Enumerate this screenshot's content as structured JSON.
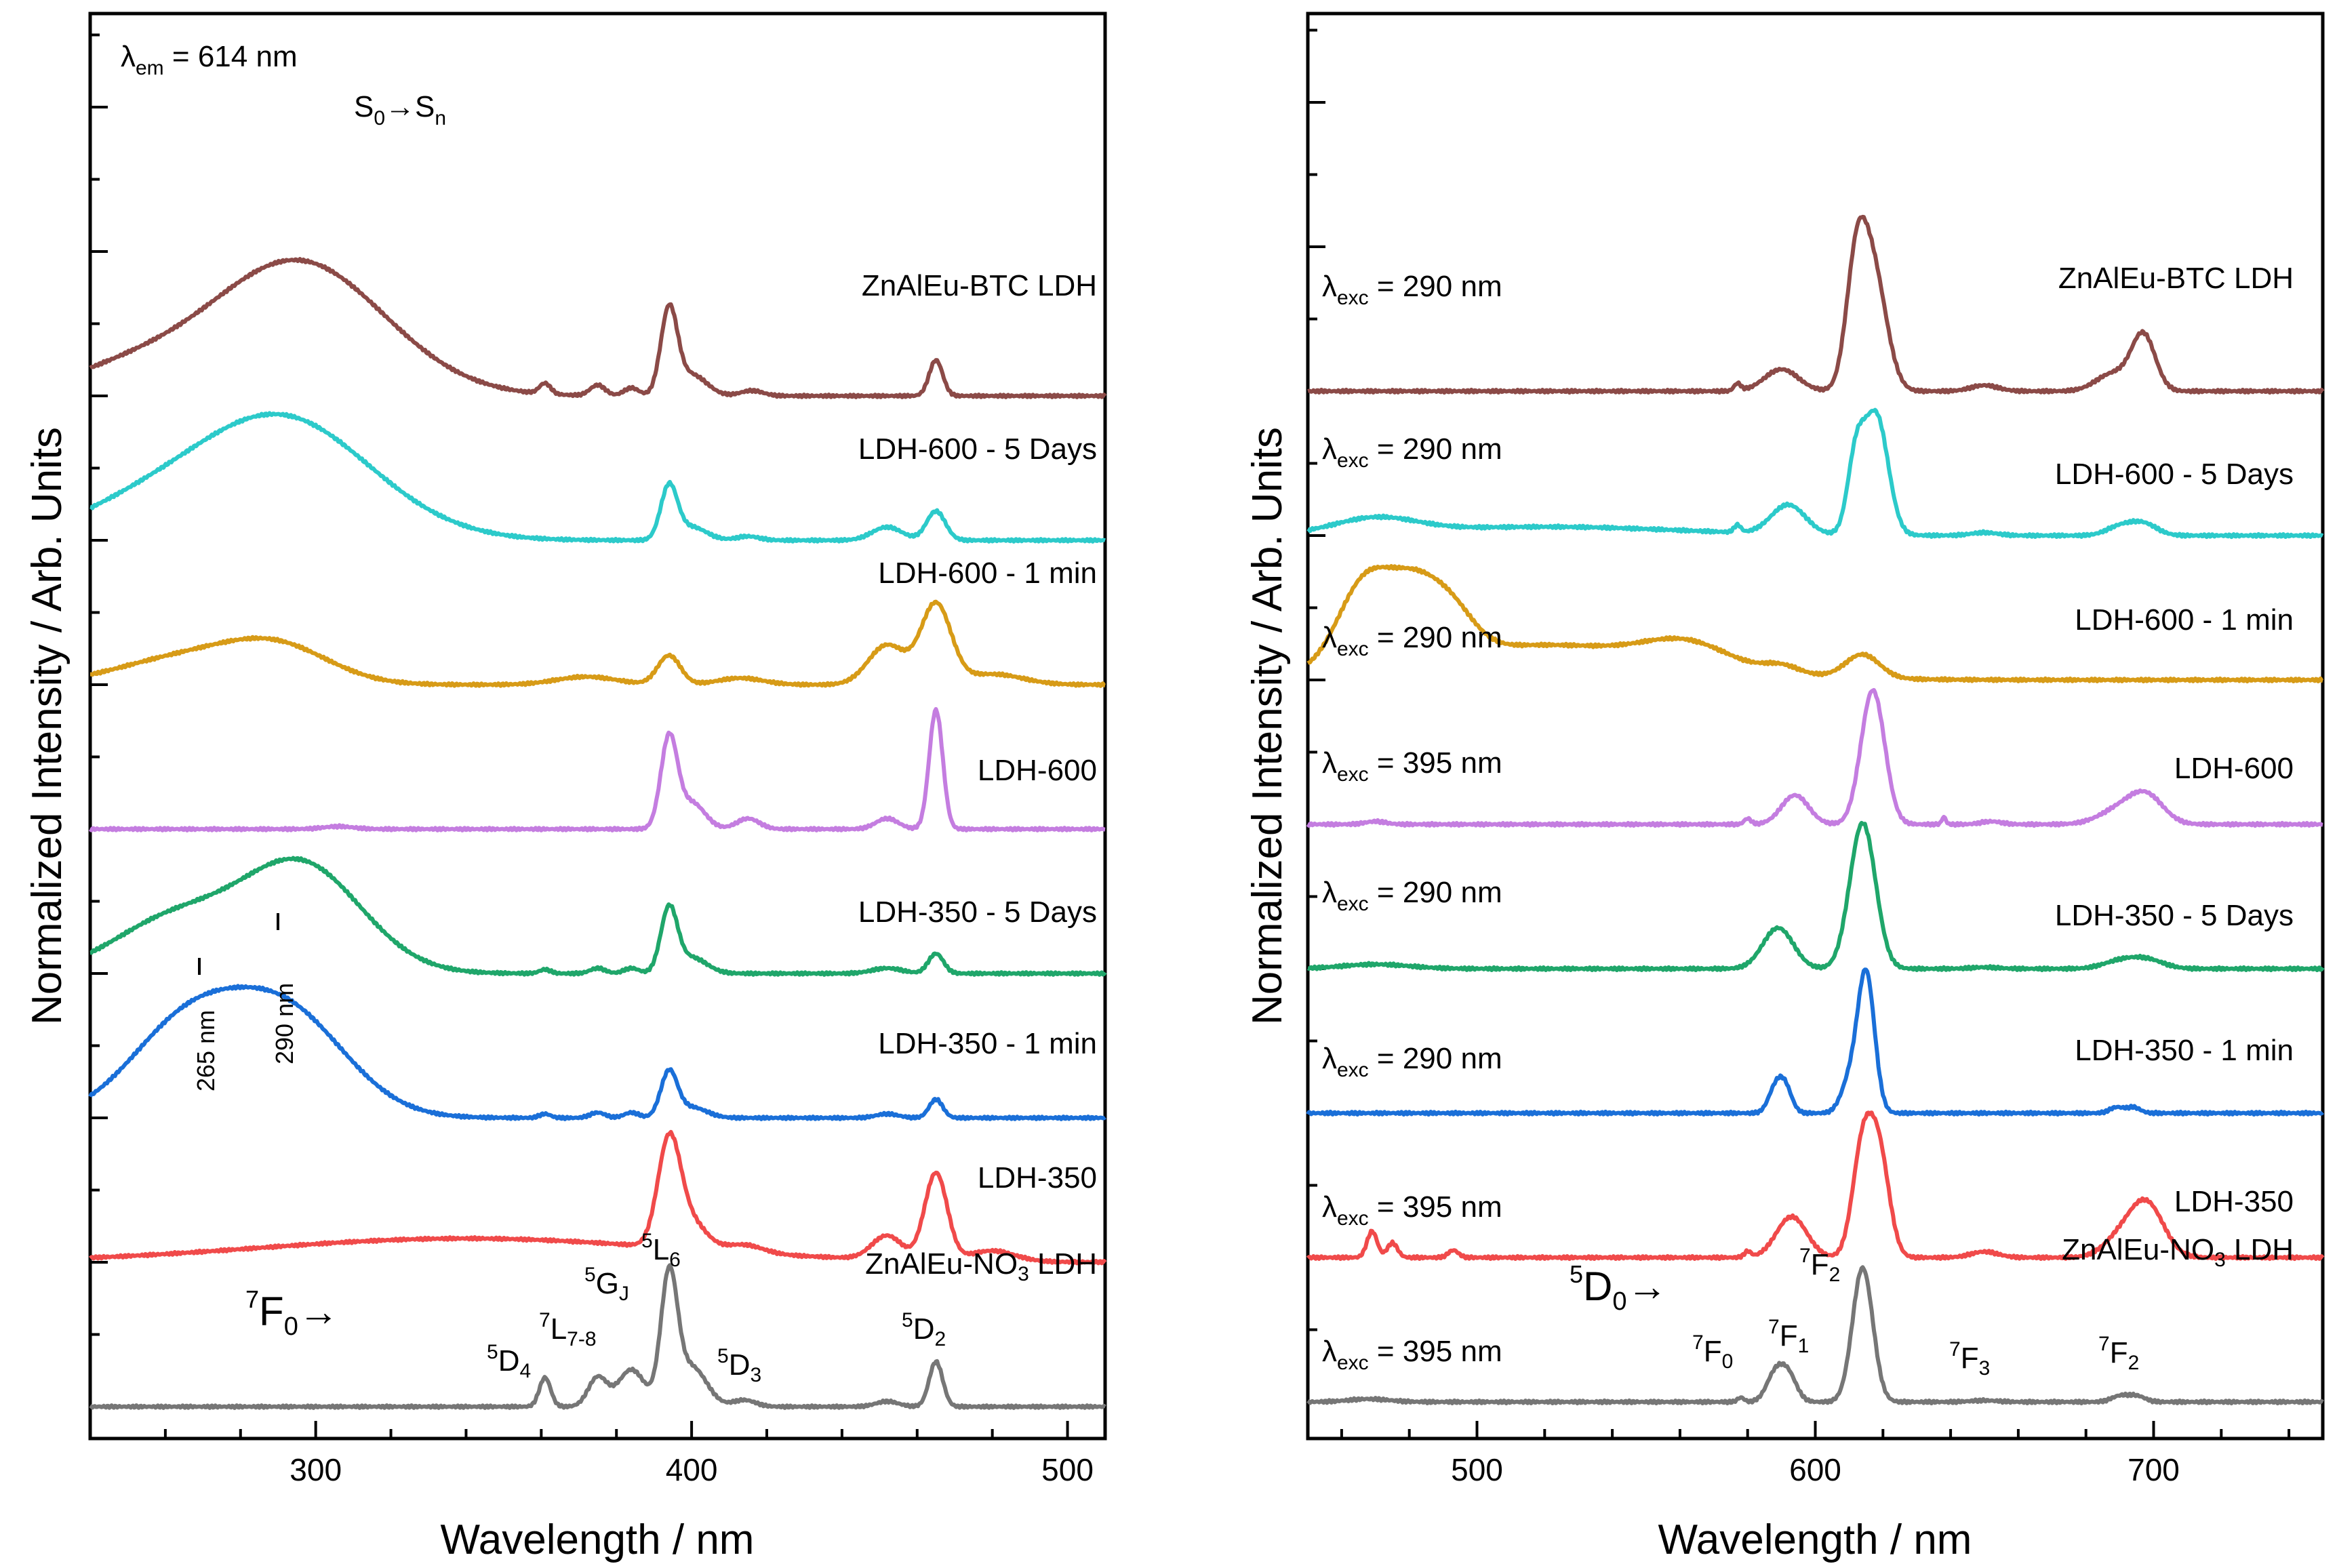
{
  "chart_data": [
    {
      "type": "line",
      "panel": "excitation",
      "xlabel": "Wavelength / nm",
      "ylabel": "Normalized Intensity / Arb. Units",
      "xlim": [
        240,
        510
      ],
      "xticks": [
        300,
        400,
        500
      ],
      "xtick_labels": [
        "300",
        "400",
        "500"
      ],
      "ylim": [
        0,
        8.5
      ],
      "annotations": {
        "lambda_em": "λ",
        "lambda_em_sub": "em",
        "lambda_em_value": " = 614 nm",
        "s0": "S",
        "s0_sub": "0",
        "arrow": "→",
        "sn": "S",
        "sn_sub": "n",
        "peak1": "265 nm",
        "peak2": "290 nm",
        "f0_sup": "7",
        "f0_main": "F",
        "f0_sub": "0",
        "f0_arrow": "→",
        "d4_sup": "5",
        "d4_main": "D",
        "d4_sub": "4",
        "l78_sup": "7",
        "l78_main": "L",
        "l78_sub": "7-8",
        "gj_sup": "5",
        "gj_main": "G",
        "gj_sub": "J",
        "l6_sup": "5",
        "l6_main": "L",
        "l6_sub": "6",
        "d3_sup": "5",
        "d3_main": "D",
        "d3_sub": "3",
        "d2_sup": "5",
        "d2_main": "D",
        "d2_sub": "2"
      },
      "series": [
        {
          "name": "ZnAlEu-BTC LDH",
          "color": "#8b4a47",
          "offset": 7.0,
          "peaks": [
            [
              295,
              1.02,
              23
            ],
            [
              250,
              0.18,
              18
            ],
            [
              361,
              0.08,
              1.5
            ],
            [
              375,
              0.08,
              2
            ],
            [
              384,
              0.06,
              2
            ],
            [
              394,
              0.64,
              2.2
            ],
            [
              400,
              0.16,
              4
            ],
            [
              416,
              0.04,
              3
            ],
            [
              465,
              0.27,
              1.8
            ]
          ]
        },
        {
          "name": "LDH-600 - 5 Days",
          "color": "#2ccaca",
          "offset": 6.0,
          "peaks": [
            [
              290,
              0.94,
              24
            ],
            [
              250,
              0.16,
              18
            ],
            [
              394,
              0.4,
              2.2
            ],
            [
              400,
              0.1,
              4
            ],
            [
              415,
              0.03,
              3
            ],
            [
              452,
              0.1,
              4
            ],
            [
              465,
              0.22,
              2.5
            ]
          ]
        },
        {
          "name": "LDH-600 - 1 min",
          "color": "#d79b17",
          "offset": 5.0,
          "peaks": [
            [
              265,
              0.2,
              18
            ],
            [
              290,
              0.26,
              14
            ],
            [
              372,
              0.06,
              8
            ],
            [
              394,
              0.22,
              3
            ],
            [
              413,
              0.05,
              6
            ],
            [
              452,
              0.3,
              5
            ],
            [
              465,
              0.6,
              4
            ],
            [
              480,
              0.08,
              8
            ]
          ]
        },
        {
          "name": "LDH-600",
          "color": "#c47de0",
          "offset": 4.0,
          "peaks": [
            [
              306,
              0.02,
              4
            ],
            [
              394,
              0.68,
              2.2
            ],
            [
              400,
              0.2,
              3.5
            ],
            [
              415,
              0.08,
              3
            ],
            [
              452,
              0.08,
              3
            ],
            [
              465,
              0.9,
              1.8
            ]
          ]
        },
        {
          "name": "LDH-350 - 5 Days",
          "color": "#1fa66a",
          "offset": 3.0,
          "peaks": [
            [
              262,
              0.4,
              16
            ],
            [
              296,
              0.82,
              16
            ],
            [
              361,
              0.03,
              1.5
            ],
            [
              375,
              0.04,
              2
            ],
            [
              384,
              0.04,
              2
            ],
            [
              394,
              0.48,
              2.2
            ],
            [
              400,
              0.12,
              4
            ],
            [
              452,
              0.04,
              4
            ],
            [
              465,
              0.15,
              2
            ]
          ]
        },
        {
          "name": "LDH-350 - 1 min",
          "color": "#1a6fd8",
          "offset": 2.0,
          "peaks": [
            [
              265,
              0.66,
              15
            ],
            [
              292,
              0.78,
              16
            ],
            [
              361,
              0.03,
              1.5
            ],
            [
              375,
              0.04,
              2
            ],
            [
              384,
              0.04,
              2
            ],
            [
              394,
              0.34,
              2.2
            ],
            [
              400,
              0.08,
              4
            ],
            [
              452,
              0.03,
              3
            ],
            [
              465,
              0.14,
              1.8
            ]
          ]
        },
        {
          "name": "LDH-350",
          "color": "#f04a4a",
          "offset": 1.0,
          "peaks": [
            [
              340,
              0.18,
              55
            ],
            [
              394,
              0.8,
              3
            ],
            [
              400,
              0.2,
              4
            ],
            [
              414,
              0.06,
              5
            ],
            [
              452,
              0.18,
              4
            ],
            [
              465,
              0.66,
              3
            ],
            [
              480,
              0.08,
              6
            ]
          ]
        },
        {
          "name": "ZnAlEu-NO3 LDH",
          "color": "#767676",
          "offset": 0.0,
          "peaks": [
            [
              361,
              0.22,
              1.5
            ],
            [
              375,
              0.22,
              2.5
            ],
            [
              384,
              0.28,
              3.5
            ],
            [
              394,
              0.96,
              2.2
            ],
            [
              400,
              0.3,
              4
            ],
            [
              414,
              0.05,
              3
            ],
            [
              452,
              0.04,
              3
            ],
            [
              465,
              0.34,
              1.8
            ]
          ]
        }
      ]
    },
    {
      "type": "line",
      "panel": "emission",
      "xlabel": "Wavelength / nm",
      "ylabel": "Normalized Intensity / Arb. Units",
      "xlim": [
        450,
        750
      ],
      "xticks": [
        500,
        600,
        700
      ],
      "xtick_labels": [
        "500",
        "600",
        "700"
      ],
      "ylim": [
        0,
        8.5
      ],
      "annotations": {
        "d0_sup": "5",
        "d0_main": "D",
        "d0_sub": "0",
        "d0_arrow": "→",
        "f0_sup": "7",
        "f0_main": "F",
        "f0_sub": "0",
        "f1_sup": "7",
        "f1_main": "F",
        "f1_sub": "1",
        "f2_sup": "7",
        "f2_main": "F",
        "f2_sub": "2",
        "f3_sup": "7",
        "f3_main": "F",
        "f3_sub": "3",
        "f4_sup": "7",
        "f4_main": "F",
        "f4_sub": "2"
      },
      "series": [
        {
          "name": "ZnAlEu-BTC LDH",
          "color": "#8b4a47",
          "offset": 7.0,
          "exc": "λ",
          "exc_sub": "exc",
          "exc_value": " = 290 nm",
          "peaks": [
            [
              577,
              0.05,
              1
            ],
            [
              590,
              0.15,
              5
            ],
            [
              612,
              0.72,
              3
            ],
            [
              617,
              0.82,
              4
            ],
            [
              650,
              0.04,
              4
            ],
            [
              688,
              0.12,
              5
            ],
            [
              697,
              0.38,
              3.5
            ]
          ]
        },
        {
          "name": "LDH-600 - 5 Days",
          "color": "#2ccaca",
          "offset": 6.0,
          "exc": "λ",
          "exc_sub": "exc",
          "exc_value": " = 290 nm",
          "peaks": [
            [
              470,
              0.1,
              12
            ],
            [
              520,
              0.06,
              40
            ],
            [
              577,
              0.05,
              1
            ],
            [
              592,
              0.2,
              5
            ],
            [
              612,
              0.5,
              2.5
            ],
            [
              618,
              0.82,
              3.5
            ],
            [
              650,
              0.02,
              4
            ],
            [
              690,
              0.06,
              4
            ],
            [
              697,
              0.08,
              4
            ]
          ]
        },
        {
          "name": "LDH-600 - 1 min",
          "color": "#d79b17",
          "offset": 5.0,
          "exc": "λ",
          "exc_sub": "exc",
          "exc_value": " = 290 nm",
          "peaks": [
            [
              467,
              0.58,
              8
            ],
            [
              481,
              0.4,
              7
            ],
            [
              492,
              0.3,
              7
            ],
            [
              520,
              0.24,
              40
            ],
            [
              562,
              0.14,
              12
            ],
            [
              590,
              0.05,
              5
            ],
            [
              614,
              0.16,
              5
            ]
          ]
        },
        {
          "name": "LDH-600",
          "color": "#c47de0",
          "offset": 4.0,
          "exc": "λ",
          "exc_sub": "exc",
          "exc_value": " = 395 nm",
          "peaks": [
            [
              470,
              0.02,
              3
            ],
            [
              580,
              0.04,
              1
            ],
            [
              594,
              0.2,
              4
            ],
            [
              617,
              0.92,
              3.5
            ],
            [
              638,
              0.05,
              0.6
            ],
            [
              652,
              0.02,
              3
            ],
            [
              690,
              0.1,
              6
            ],
            [
              698,
              0.18,
              5
            ]
          ]
        },
        {
          "name": "LDH-350 - 5 Days",
          "color": "#1fa66a",
          "offset": 3.0,
          "exc": "λ",
          "exc_sub": "exc",
          "exc_value": " = 290 nm",
          "peaks": [
            [
              470,
              0.03,
              10
            ],
            [
              589,
              0.28,
              4.5
            ],
            [
              614,
              1.0,
              3.8
            ],
            [
              650,
              0.01,
              4
            ],
            [
              690,
              0.05,
              5
            ],
            [
              698,
              0.06,
              5
            ]
          ]
        },
        {
          "name": "LDH-350 - 1 min",
          "color": "#1a6fd8",
          "offset": 2.0,
          "exc": "λ",
          "exc_sub": "exc",
          "exc_value": " = 290 nm",
          "peaks": [
            [
              588,
              0.15,
              2
            ],
            [
              591,
              0.18,
              2
            ],
            [
              610,
              0.2,
              2.5
            ],
            [
              615,
              0.96,
              2.5
            ],
            [
              689,
              0.04,
              2
            ],
            [
              694,
              0.04,
              2
            ]
          ]
        },
        {
          "name": "LDH-350",
          "color": "#f04a4a",
          "offset": 1.0,
          "exc": "λ",
          "exc_sub": "exc",
          "exc_value": " = 395 nm",
          "peaks": [
            [
              469,
              0.18,
              1.5
            ],
            [
              475,
              0.1,
              1.5
            ],
            [
              493,
              0.05,
              1.5
            ],
            [
              580,
              0.04,
              1
            ],
            [
              593,
              0.28,
              4.5
            ],
            [
              614,
              0.74,
              3
            ],
            [
              619,
              0.66,
              3
            ],
            [
              650,
              0.04,
              4
            ],
            [
              690,
              0.12,
              5
            ],
            [
              698,
              0.36,
              5
            ]
          ]
        },
        {
          "name": "ZnAlEu-NO3 LDH",
          "color": "#767676",
          "offset": 0.0,
          "exc": "λ",
          "exc_sub": "exc",
          "exc_value": " = 395 nm",
          "peaks": [
            [
              468,
              0.02,
              6
            ],
            [
              578,
              0.03,
              1
            ],
            [
              588,
              0.18,
              2.5
            ],
            [
              592,
              0.18,
              2.5
            ],
            [
              614,
              0.92,
              3
            ],
            [
              650,
              0.01,
              4
            ],
            [
              690,
              0.04,
              2.5
            ],
            [
              695,
              0.04,
              2.5
            ]
          ]
        }
      ]
    }
  ]
}
